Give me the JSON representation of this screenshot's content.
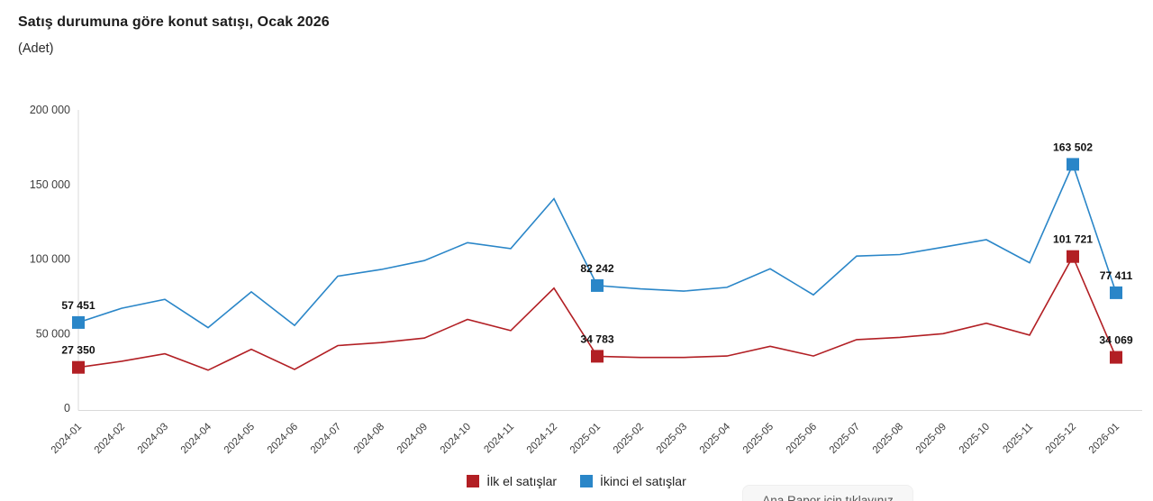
{
  "title": "Satış durumuna göre konut satışı, Ocak 2026",
  "subtitle": "(Adet)",
  "chart_data": {
    "type": "line",
    "title": "Satış durumuna göre konut satışı, Ocak 2026",
    "ylabel": "(Adet)",
    "xlabel": "",
    "ylim": [
      0,
      200000
    ],
    "ytick_step": 50000,
    "grid": false,
    "legend_position": "bottom",
    "marker_shape": "square",
    "marked_indices": [
      0,
      12,
      23,
      24
    ],
    "categories": [
      "2024-01",
      "2024-02",
      "2024-03",
      "2024-04",
      "2024-05",
      "2024-06",
      "2024-07",
      "2024-08",
      "2024-09",
      "2024-10",
      "2024-11",
      "2024-12",
      "2025-01",
      "2025-02",
      "2025-03",
      "2025-04",
      "2025-05",
      "2025-06",
      "2025-07",
      "2025-08",
      "2025-09",
      "2025-10",
      "2025-11",
      "2025-12",
      "2026-01"
    ],
    "series": [
      {
        "name": "İlk el satışlar",
        "color": "#b21f24",
        "values": [
          27350,
          31500,
          36500,
          25500,
          39500,
          26000,
          42000,
          44000,
          47000,
          59500,
          52000,
          80500,
          34783,
          34000,
          34000,
          35000,
          41500,
          35000,
          46000,
          47500,
          50000,
          57000,
          49000,
          101721,
          34069
        ],
        "labeled_values": {
          "2024-01": 27350,
          "2025-01": 34783,
          "2025-12": 101721,
          "2026-01": 34069
        }
      },
      {
        "name": "İkinci el satışlar",
        "color": "#2a86c8",
        "values": [
          57451,
          67000,
          73000,
          54000,
          78000,
          55500,
          88500,
          93000,
          99000,
          111000,
          107000,
          140500,
          82242,
          80000,
          78500,
          81000,
          93500,
          76000,
          102000,
          103000,
          108000,
          113000,
          97500,
          163502,
          77411
        ],
        "labeled_values": {
          "2024-01": 57451,
          "2025-01": 82242,
          "2025-12": 163502,
          "2026-01": 77411
        }
      }
    ],
    "ytick_labels": [
      "0",
      "50 000",
      "100 000",
      "150 000",
      "200 000"
    ]
  },
  "legend": {
    "items": [
      {
        "label": "İlk el satışlar",
        "color": "#b21f24"
      },
      {
        "label": "İkinci el satışlar",
        "color": "#2a86c8"
      }
    ]
  },
  "footer_note": {
    "text": "Ana Rapor için tıklayınız"
  }
}
